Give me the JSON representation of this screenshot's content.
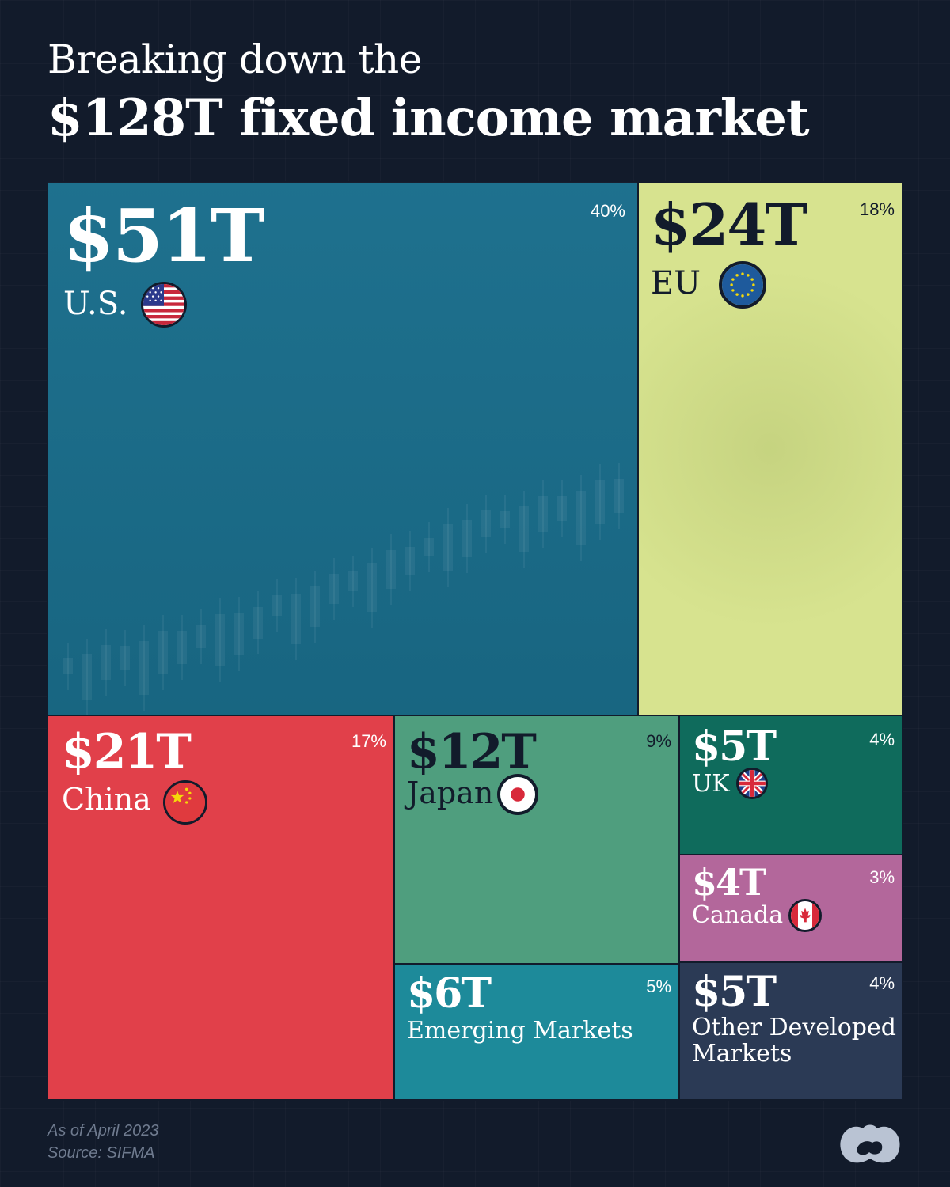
{
  "title": {
    "line1": "Breaking down the",
    "line2": "$128T fixed income market"
  },
  "chart_data": {
    "type": "treemap",
    "total": 128,
    "unit": "$T",
    "items": [
      {
        "name": "U.S.",
        "value": 51,
        "value_label": "$51T",
        "percent_label": "40%",
        "color": "#1a6e8c",
        "text_color": "#ffffff",
        "flag": "us-flag-icon"
      },
      {
        "name": "EU",
        "value": 24,
        "value_label": "$24T",
        "percent_label": "18%",
        "color": "#d7e38f",
        "text_color": "#121b2b",
        "flag": "eu-flag-icon"
      },
      {
        "name": "China",
        "value": 21,
        "value_label": "$21T",
        "percent_label": "17%",
        "color": "#e1404a",
        "text_color": "#ffffff",
        "flag": "china-flag-icon"
      },
      {
        "name": "Japan",
        "value": 12,
        "value_label": "$12T",
        "percent_label": "9%",
        "color": "#4f9e7e",
        "text_color": "#121b2b",
        "flag": "japan-flag-icon"
      },
      {
        "name": "UK",
        "value": 5,
        "value_label": "$5T",
        "percent_label": "4%",
        "color": "#0f6b5c",
        "text_color": "#ffffff",
        "flag": "uk-flag-icon"
      },
      {
        "name": "Canada",
        "value": 4,
        "value_label": "$4T",
        "percent_label": "3%",
        "color": "#b3679b",
        "text_color": "#ffffff",
        "flag": "canada-flag-icon"
      },
      {
        "name": "Emerging Markets",
        "value": 6,
        "value_label": "$6T",
        "percent_label": "5%",
        "color": "#1d8a9a",
        "text_color": "#ffffff",
        "flag": ""
      },
      {
        "name": "Other Developed Markets",
        "value": 5,
        "value_label": "$5T",
        "percent_label": "4%",
        "color": "#2b3a55",
        "text_color": "#ffffff",
        "flag": ""
      }
    ]
  },
  "footer": {
    "date": "As of April 2023",
    "source": "Source: SIFMA"
  },
  "logo": "visual-capitalist-logo-icon"
}
